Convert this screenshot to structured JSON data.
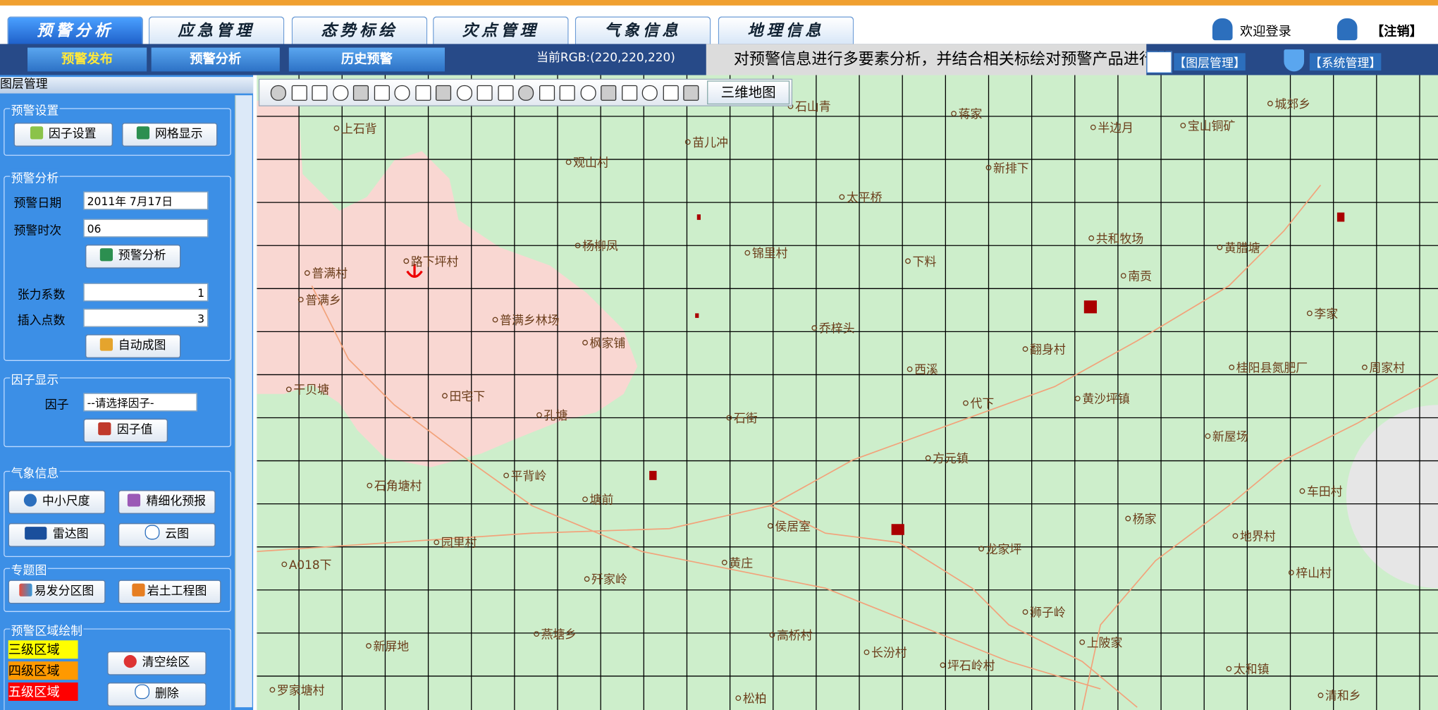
{
  "top_tabs": [
    "预警分析",
    "应急管理",
    "态势标绘",
    "灾点管理",
    "气象信息",
    "地理信息"
  ],
  "user": {
    "login": "欢迎登录",
    "logout": "【注销】"
  },
  "sub_tabs": [
    "预警发布",
    "预警分析",
    "历史预警"
  ],
  "rgb_text": "当前RGB:(220,220,220)",
  "marquee": "对预警信息进行多要素分析，并结合相关标绘对预警产品进行编",
  "right_buttons": [
    "【图层管理】",
    "【系统管理】"
  ],
  "sidebar": {
    "title": "图层管理",
    "warning_settings": {
      "legend": "预警设置",
      "buttons": [
        "因子设置",
        "网格显示"
      ]
    },
    "warning_analysis": {
      "legend": "预警分析",
      "date_label": "预警日期",
      "date_value": "2011年 7月17日",
      "time_label": "预警时次",
      "time_value": "06",
      "analyze_button": "预警分析",
      "tension_label": "张力系数",
      "tension_value": "1",
      "points_label": "插入点数",
      "points_value": "3",
      "auto_button": "自动成图"
    },
    "factor_display": {
      "legend": "因子显示",
      "factor_label": "因子",
      "factor_value": "--请选择因子-",
      "button": "因子值"
    },
    "weather": {
      "legend": "气象信息",
      "buttons": [
        "中小尺度",
        "精细化预报",
        "雷达图",
        "云图"
      ]
    },
    "thematic": {
      "legend": "专题图",
      "buttons": [
        "易发分区图",
        "岩土工程图"
      ]
    },
    "drawing": {
      "legend": "预警区域绘制",
      "levels": [
        "三级区域",
        "四级区域",
        "五级区域"
      ],
      "buttons": [
        "清空绘区",
        "删除"
      ]
    }
  },
  "map": {
    "toolbar_button": "三维地图",
    "places": [
      "石山青",
      "蒋家",
      "半边月",
      "宝山铜矿",
      "城郊乡",
      "上石背",
      "苗儿冲",
      "观山村",
      "新排下",
      "太平桥",
      "路下坪村",
      "杨柳凤",
      "锦里村",
      "下料",
      "共和牧场",
      "黄腊塘",
      "普满村",
      "南贡",
      "普满乡",
      "李家",
      "普满乡林场",
      "乔梓头",
      "枫家铺",
      "翻身村",
      "西溪",
      "桂阳县氮肥厂",
      "周家村",
      "干贝塘",
      "田宅下",
      "代下",
      "黄沙坪镇",
      "孔塘",
      "石街",
      "新屋场",
      "方元镇",
      "平背岭",
      "石角塘村",
      "塘前",
      "车田村",
      "杨家",
      "侯居室",
      "地界村",
      "园里村",
      "龙家坪",
      "A018下",
      "黄庄",
      "梓山村",
      "歼家岭",
      "狮子岭",
      "燕塘乡",
      "高桥村",
      "上陂家",
      "新屏地",
      "长汾村",
      "坪石岭村",
      "太和镇",
      "罗家塘村",
      "松柏",
      "清和乡"
    ]
  }
}
